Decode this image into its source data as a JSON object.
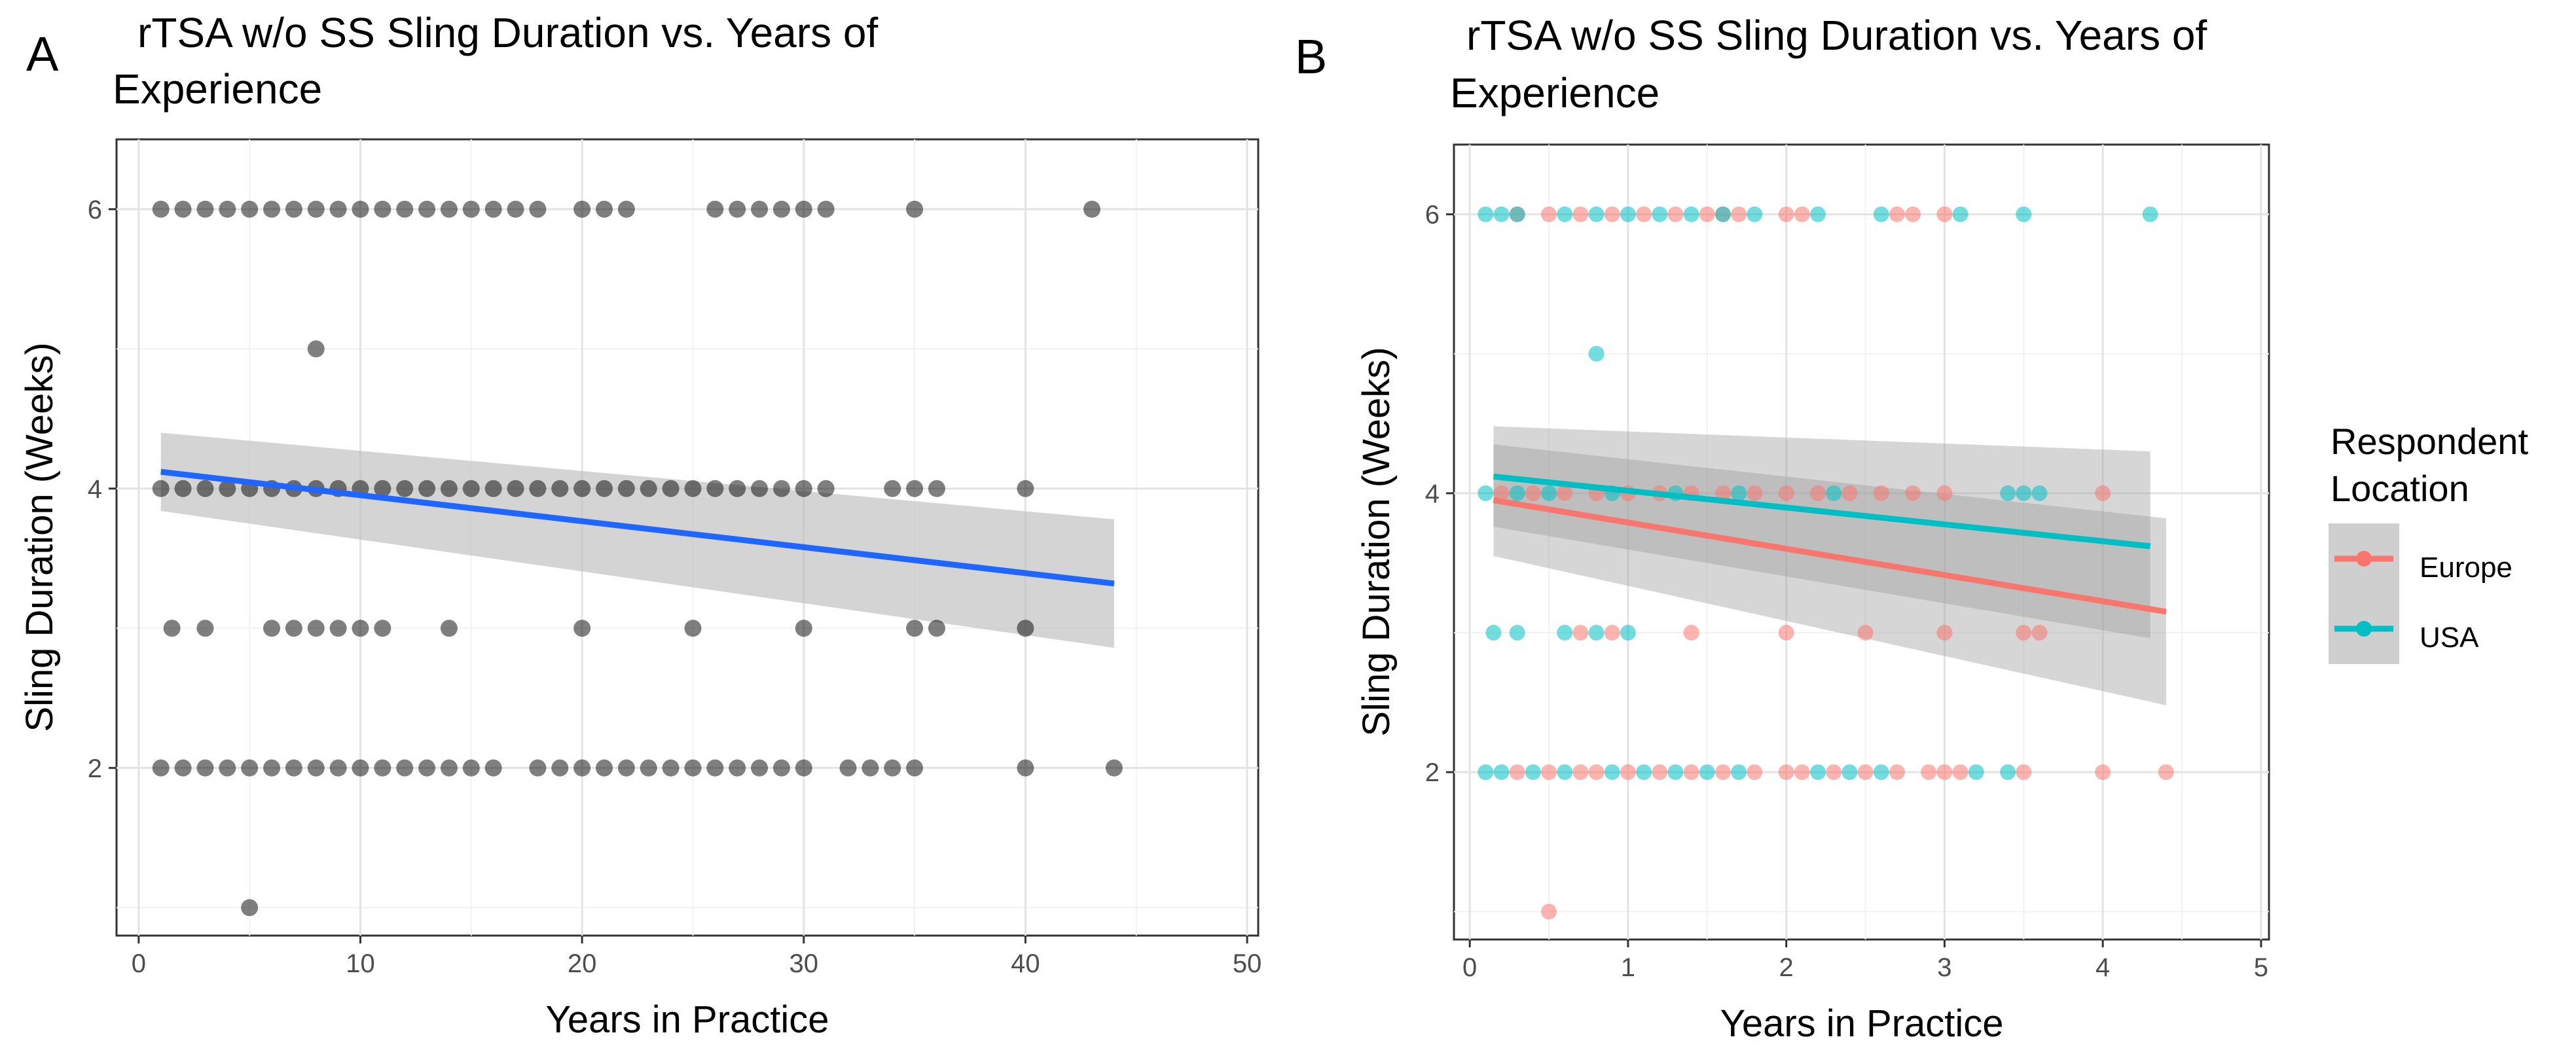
{
  "chart_data": [
    {
      "type": "scatter",
      "panel_label": "A",
      "title_line1": "rTSA  w/o SS Sling Duration vs. Years of",
      "title_line2": "Experience",
      "xlabel": "Years in Practice",
      "ylabel": "Sling Duration (Weeks)",
      "xlim": [
        -1,
        50.5
      ],
      "ylim": [
        0.8,
        6.5
      ],
      "xticks": [
        0,
        10,
        20,
        30,
        40,
        50
      ],
      "yticks": [
        2,
        4,
        6
      ],
      "grid": true,
      "point_color": "#000000",
      "fit_color": "#1f66ff",
      "band_color": "#bdbdbd",
      "fit_line": {
        "x": [
          1,
          44
        ],
        "y": [
          4.12,
          3.32
        ]
      },
      "confidence_band": {
        "x": [
          1,
          44
        ],
        "upper": [
          4.4,
          3.78
        ],
        "lower": [
          3.84,
          2.86
        ]
      },
      "points": [
        [
          1,
          6
        ],
        [
          2,
          6
        ],
        [
          3,
          6
        ],
        [
          4,
          6
        ],
        [
          5,
          6
        ],
        [
          6,
          6
        ],
        [
          7,
          6
        ],
        [
          8,
          6
        ],
        [
          9,
          6
        ],
        [
          10,
          6
        ],
        [
          11,
          6
        ],
        [
          12,
          6
        ],
        [
          13,
          6
        ],
        [
          14,
          6
        ],
        [
          15,
          6
        ],
        [
          16,
          6
        ],
        [
          17,
          6
        ],
        [
          18,
          6
        ],
        [
          20,
          6
        ],
        [
          21,
          6
        ],
        [
          22,
          6
        ],
        [
          26,
          6
        ],
        [
          27,
          6
        ],
        [
          28,
          6
        ],
        [
          29,
          6
        ],
        [
          30,
          6
        ],
        [
          31,
          6
        ],
        [
          35,
          6
        ],
        [
          43,
          6
        ],
        [
          8,
          5
        ],
        [
          1,
          4
        ],
        [
          2,
          4
        ],
        [
          3,
          4
        ],
        [
          4,
          4
        ],
        [
          5,
          4
        ],
        [
          6,
          4
        ],
        [
          7,
          4
        ],
        [
          8,
          4
        ],
        [
          9,
          4
        ],
        [
          10,
          4
        ],
        [
          11,
          4
        ],
        [
          12,
          4
        ],
        [
          13,
          4
        ],
        [
          14,
          4
        ],
        [
          15,
          4
        ],
        [
          16,
          4
        ],
        [
          17,
          4
        ],
        [
          18,
          4
        ],
        [
          19,
          4
        ],
        [
          20,
          4
        ],
        [
          21,
          4
        ],
        [
          22,
          4
        ],
        [
          23,
          4
        ],
        [
          24,
          4
        ],
        [
          25,
          4
        ],
        [
          26,
          4
        ],
        [
          27,
          4
        ],
        [
          28,
          4
        ],
        [
          29,
          4
        ],
        [
          30,
          4
        ],
        [
          31,
          4
        ],
        [
          34,
          4
        ],
        [
          35,
          4
        ],
        [
          36,
          4
        ],
        [
          40,
          4
        ],
        [
          1.5,
          3
        ],
        [
          3,
          3
        ],
        [
          6,
          3
        ],
        [
          7,
          3
        ],
        [
          8,
          3
        ],
        [
          9,
          3
        ],
        [
          10,
          3
        ],
        [
          11,
          3
        ],
        [
          14,
          3
        ],
        [
          20,
          3
        ],
        [
          25,
          3
        ],
        [
          30,
          3
        ],
        [
          35,
          3
        ],
        [
          36,
          3
        ],
        [
          40,
          3
        ],
        [
          1,
          2
        ],
        [
          2,
          2
        ],
        [
          3,
          2
        ],
        [
          4,
          2
        ],
        [
          5,
          2
        ],
        [
          6,
          2
        ],
        [
          7,
          2
        ],
        [
          8,
          2
        ],
        [
          9,
          2
        ],
        [
          10,
          2
        ],
        [
          11,
          2
        ],
        [
          12,
          2
        ],
        [
          13,
          2
        ],
        [
          14,
          2
        ],
        [
          15,
          2
        ],
        [
          16,
          2
        ],
        [
          18,
          2
        ],
        [
          19,
          2
        ],
        [
          20,
          2
        ],
        [
          21,
          2
        ],
        [
          22,
          2
        ],
        [
          23,
          2
        ],
        [
          24,
          2
        ],
        [
          25,
          2
        ],
        [
          26,
          2
        ],
        [
          27,
          2
        ],
        [
          28,
          2
        ],
        [
          29,
          2
        ],
        [
          30,
          2
        ],
        [
          32,
          2
        ],
        [
          33,
          2
        ],
        [
          34,
          2
        ],
        [
          35,
          2
        ],
        [
          40,
          2
        ],
        [
          44,
          2
        ],
        [
          5,
          1
        ]
      ]
    },
    {
      "type": "scatter",
      "panel_label": "B",
      "title_line1": "rTSA  w/o SS Sling Duration vs. Years of",
      "title_line2": "Experience",
      "xlabel": "Years in Practice",
      "ylabel": "Sling Duration (Weeks)",
      "xlim": [
        -0.1,
        5.05
      ],
      "ylim": [
        0.8,
        6.5
      ],
      "xticks": [
        0,
        1,
        2,
        3,
        4,
        5
      ],
      "yticks": [
        2,
        4,
        6
      ],
      "grid": true,
      "legend_title_line1": "Respondent",
      "legend_title_line2": "Location",
      "legend_position": "right",
      "series": [
        {
          "name": "Europe",
          "color": "#f8766d",
          "fit_line": {
            "x": [
              0.15,
              4.4
            ],
            "y": [
              3.95,
              3.15
            ]
          },
          "confidence_band": {
            "x": [
              0.15,
              4.4
            ],
            "upper": [
              4.35,
              3.82
            ],
            "lower": [
              3.55,
              2.48
            ]
          },
          "points": [
            [
              0.3,
              6
            ],
            [
              0.5,
              6
            ],
            [
              0.7,
              6
            ],
            [
              0.9,
              6
            ],
            [
              1.1,
              6
            ],
            [
              1.3,
              6
            ],
            [
              1.5,
              6
            ],
            [
              1.6,
              6
            ],
            [
              1.7,
              6
            ],
            [
              2.0,
              6
            ],
            [
              2.1,
              6
            ],
            [
              2.7,
              6
            ],
            [
              2.8,
              6
            ],
            [
              3.0,
              6
            ],
            [
              0.2,
              4
            ],
            [
              0.4,
              4
            ],
            [
              0.6,
              4
            ],
            [
              0.8,
              4
            ],
            [
              1.0,
              4
            ],
            [
              1.2,
              4
            ],
            [
              1.4,
              4
            ],
            [
              1.6,
              4
            ],
            [
              1.8,
              4
            ],
            [
              2.0,
              4
            ],
            [
              2.2,
              4
            ],
            [
              2.4,
              4
            ],
            [
              2.6,
              4
            ],
            [
              2.8,
              4
            ],
            [
              3.0,
              4
            ],
            [
              4.0,
              4
            ],
            [
              0.7,
              3
            ],
            [
              0.9,
              3
            ],
            [
              1.4,
              3
            ],
            [
              2.0,
              3
            ],
            [
              2.5,
              3
            ],
            [
              3.0,
              3
            ],
            [
              3.5,
              3
            ],
            [
              3.6,
              3
            ],
            [
              0.3,
              2
            ],
            [
              0.5,
              2
            ],
            [
              0.7,
              2
            ],
            [
              0.8,
              2
            ],
            [
              1.0,
              2
            ],
            [
              1.2,
              2
            ],
            [
              1.4,
              2
            ],
            [
              1.6,
              2
            ],
            [
              1.8,
              2
            ],
            [
              2.0,
              2
            ],
            [
              2.1,
              2
            ],
            [
              2.3,
              2
            ],
            [
              2.5,
              2
            ],
            [
              2.7,
              2
            ],
            [
              2.9,
              2
            ],
            [
              3.0,
              2
            ],
            [
              3.1,
              2
            ],
            [
              3.5,
              2
            ],
            [
              4.0,
              2
            ],
            [
              4.4,
              2
            ],
            [
              0.5,
              1
            ]
          ]
        },
        {
          "name": "USA",
          "color": "#00bfc4",
          "fit_line": {
            "x": [
              0.15,
              4.3
            ],
            "y": [
              4.12,
              3.62
            ]
          },
          "confidence_band": {
            "x": [
              0.15,
              4.3
            ],
            "upper": [
              4.48,
              4.3
            ],
            "lower": [
              3.76,
              2.96
            ]
          },
          "points": [
            [
              0.1,
              6
            ],
            [
              0.2,
              6
            ],
            [
              0.3,
              6
            ],
            [
              0.6,
              6
            ],
            [
              0.8,
              6
            ],
            [
              1.0,
              6
            ],
            [
              1.2,
              6
            ],
            [
              1.4,
              6
            ],
            [
              1.6,
              6
            ],
            [
              1.8,
              6
            ],
            [
              2.2,
              6
            ],
            [
              2.6,
              6
            ],
            [
              3.1,
              6
            ],
            [
              3.5,
              6
            ],
            [
              4.3,
              6
            ],
            [
              0.8,
              5
            ],
            [
              0.1,
              4
            ],
            [
              0.3,
              4
            ],
            [
              0.5,
              4
            ],
            [
              0.9,
              4
            ],
            [
              1.3,
              4
            ],
            [
              1.7,
              4
            ],
            [
              2.3,
              4
            ],
            [
              3.4,
              4
            ],
            [
              3.5,
              4
            ],
            [
              3.6,
              4
            ],
            [
              0.15,
              3
            ],
            [
              0.3,
              3
            ],
            [
              0.6,
              3
            ],
            [
              0.8,
              3
            ],
            [
              1.0,
              3
            ],
            [
              0.1,
              2
            ],
            [
              0.2,
              2
            ],
            [
              0.4,
              2
            ],
            [
              0.6,
              2
            ],
            [
              0.9,
              2
            ],
            [
              1.1,
              2
            ],
            [
              1.3,
              2
            ],
            [
              1.5,
              2
            ],
            [
              1.7,
              2
            ],
            [
              2.2,
              2
            ],
            [
              2.4,
              2
            ],
            [
              2.6,
              2
            ],
            [
              3.2,
              2
            ],
            [
              3.4,
              2
            ]
          ]
        }
      ]
    }
  ]
}
